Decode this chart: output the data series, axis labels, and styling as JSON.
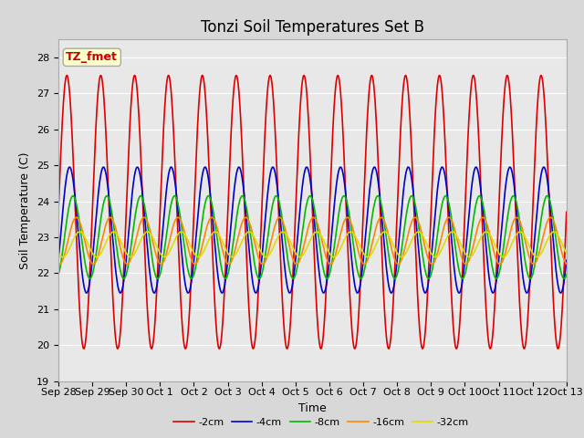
{
  "title": "Tonzi Soil Temperatures Set B",
  "xlabel": "Time",
  "ylabel": "Soil Temperature (C)",
  "ylim": [
    19.0,
    28.5
  ],
  "yticks": [
    19.0,
    20.0,
    21.0,
    22.0,
    23.0,
    24.0,
    25.0,
    26.0,
    27.0,
    28.0
  ],
  "fig_bg_color": "#d8d8d8",
  "plot_bg_color": "#e8e8e8",
  "annotation_text": "TZ_fmet",
  "annotation_color": "#cc0000",
  "annotation_bg": "#ffffcc",
  "annotation_border": "#aaaaaa",
  "series": [
    {
      "label": "-2cm",
      "color": "#dd0000",
      "amplitude": 3.8,
      "mean": 23.7,
      "phase_days": 0.0
    },
    {
      "label": "-4cm",
      "color": "#0000cc",
      "amplitude": 1.75,
      "mean": 23.2,
      "phase_days": 0.08
    },
    {
      "label": "-8cm",
      "color": "#00bb00",
      "amplitude": 1.15,
      "mean": 23.0,
      "phase_days": 0.18
    },
    {
      "label": "-16cm",
      "color": "#ff8800",
      "amplitude": 0.65,
      "mean": 22.9,
      "phase_days": 0.28
    },
    {
      "label": "-32cm",
      "color": "#dddd00",
      "amplitude": 0.35,
      "mean": 22.8,
      "phase_days": 0.38
    }
  ],
  "x_tick_labels": [
    "Sep 28",
    "Sep 29",
    "Sep 30",
    "Oct 1",
    "Oct 2",
    "Oct 3",
    "Oct 4",
    "Oct 5",
    "Oct 6",
    "Oct 7",
    "Oct 8",
    "Oct 9",
    "Oct 10",
    "Oct 11",
    "Oct 12",
    "Oct 13"
  ],
  "num_days": 15,
  "points_per_day": 96,
  "line_width": 1.2,
  "title_fontsize": 12,
  "label_fontsize": 9,
  "tick_fontsize": 8,
  "legend_fontsize": 8
}
